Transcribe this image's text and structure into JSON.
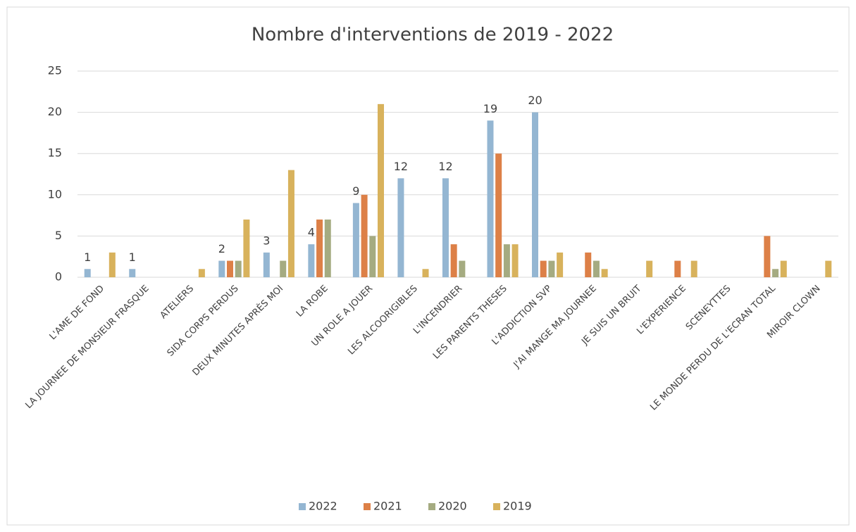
{
  "chart_data": {
    "type": "bar",
    "title": "Nombre d'interventions de 2019 - 2022",
    "categories": [
      "L'AME DE FOND",
      "LA JOURNEE DE MONSIEUR FRASQUE",
      "ATELIERS",
      "SIDA CORPS PERDUS",
      "DEUX MINUTES APRÈS MOI",
      "LA ROBE",
      "UN ROLE A JOUER",
      "LES ALCOORIGIBLES",
      "L'INCENDRIER",
      "LES PARENTS THESES",
      "L'ADDICTION SVP",
      "J'AI MANGE MA JOURNEE",
      "JE SUIS UN BRUIT",
      "L'EXPERIENCE",
      "SCENEYTTES",
      "LE MONDE PERDU DE L'ECRAN TOTAL",
      "MIROIR CLOWN"
    ],
    "series": [
      {
        "name": "2022",
        "color": "#94b6d2",
        "show_labels": true,
        "values": [
          1,
          1,
          0,
          2,
          3,
          4,
          9,
          12,
          12,
          19,
          20,
          0,
          0,
          0,
          0,
          0,
          0
        ]
      },
      {
        "name": "2021",
        "color": "#dd8047",
        "show_labels": false,
        "values": [
          0,
          0,
          0,
          2,
          0,
          7,
          10,
          0,
          4,
          15,
          2,
          3,
          0,
          2,
          0,
          5,
          0
        ]
      },
      {
        "name": "2020",
        "color": "#a5ab81",
        "show_labels": false,
        "values": [
          0,
          0,
          0,
          2,
          2,
          7,
          5,
          0,
          2,
          4,
          2,
          2,
          0,
          0,
          0,
          1,
          0
        ]
      },
      {
        "name": "2019",
        "color": "#d8b25c",
        "show_labels": false,
        "values": [
          3,
          0,
          1,
          7,
          13,
          0,
          21,
          1,
          0,
          4,
          3,
          1,
          2,
          2,
          0,
          2,
          2
        ]
      }
    ],
    "ylim": [
      0,
      25
    ],
    "yticks": [
      0,
      5,
      10,
      15,
      20,
      25
    ],
    "grid": true,
    "legend": "bottom"
  }
}
